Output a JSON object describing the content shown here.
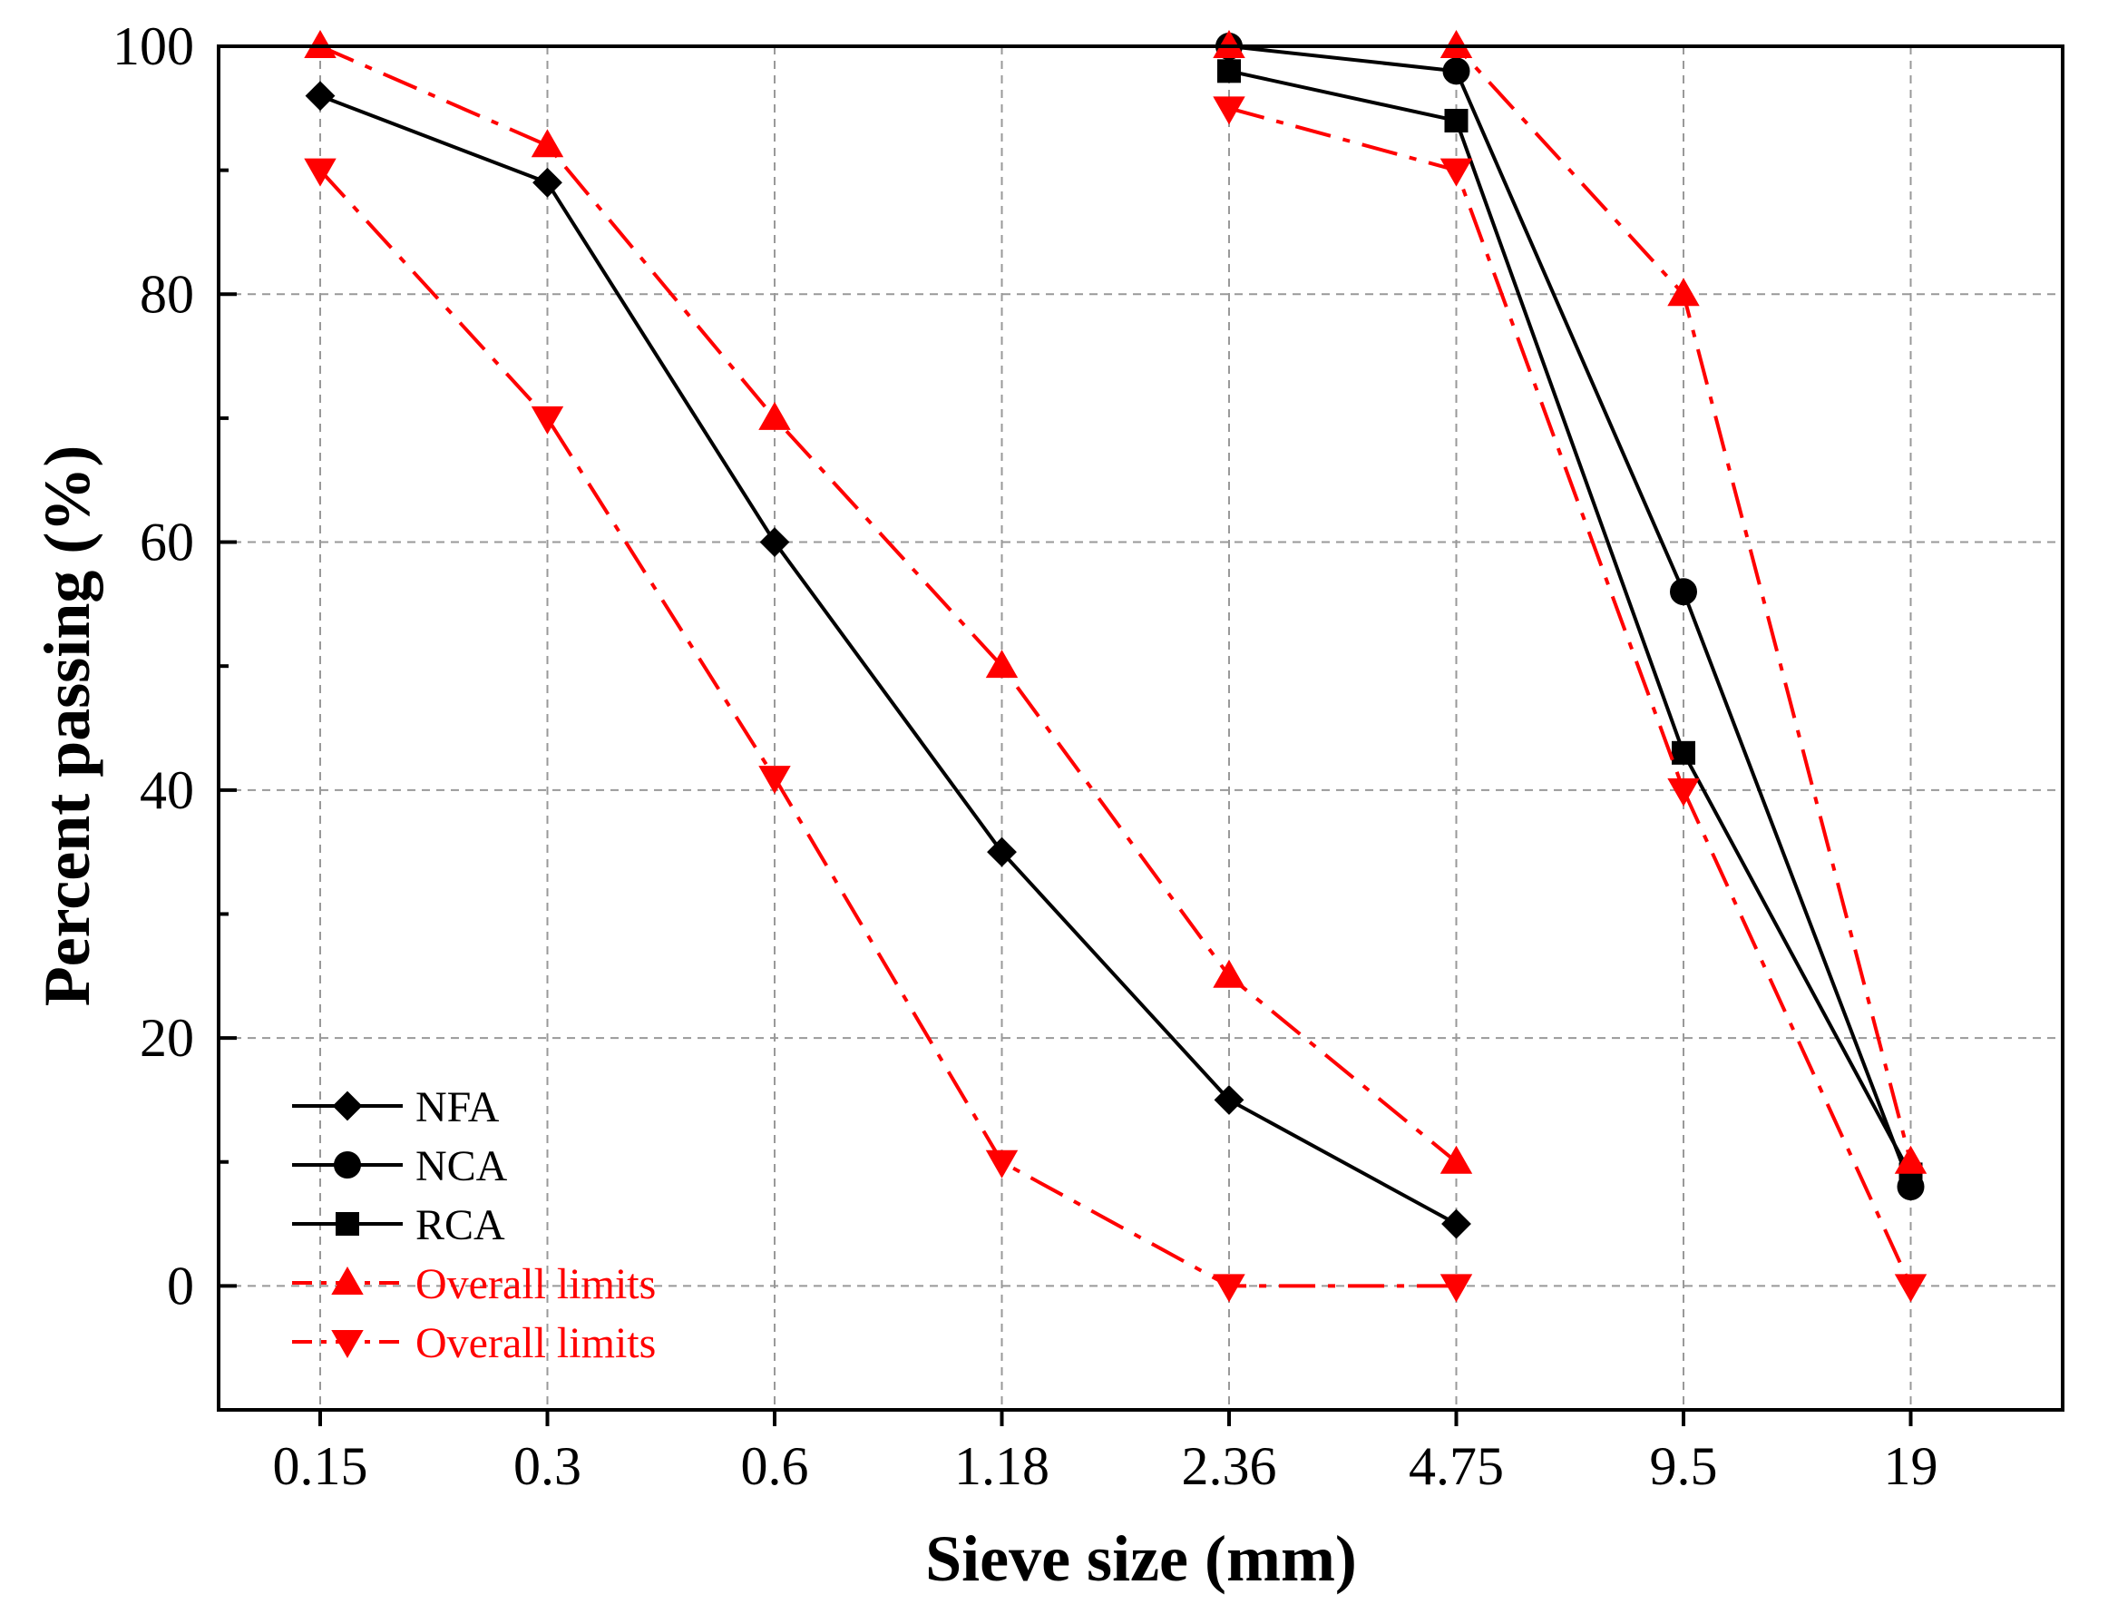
{
  "chart_data": {
    "type": "line",
    "title": "",
    "xlabel": "Sieve size (mm)",
    "ylabel": "Percent passing (%)",
    "categories": [
      "0.15",
      "0.3",
      "0.6",
      "1.18",
      "2.36",
      "4.75",
      "9.5",
      "19"
    ],
    "ylim": [
      -10,
      100
    ],
    "yticks": [
      0,
      20,
      40,
      60,
      80,
      100
    ],
    "grid": true,
    "legend_position": "bottom-left",
    "series": [
      {
        "name": "NFA",
        "color": "#000000",
        "marker": "diamond",
        "dash": "solid",
        "values": [
          96,
          89,
          60,
          35,
          15,
          5,
          null,
          null
        ]
      },
      {
        "name": "NCA",
        "color": "#000000",
        "marker": "circle",
        "dash": "solid",
        "values": [
          null,
          null,
          null,
          null,
          100,
          98,
          56,
          8
        ]
      },
      {
        "name": "RCA",
        "color": "#000000",
        "marker": "square",
        "dash": "solid",
        "values": [
          null,
          null,
          null,
          null,
          98,
          94,
          43,
          9
        ]
      },
      {
        "name": "Overall limits",
        "color": "#ff0000",
        "marker": "triangle-up",
        "dash": "dashdot",
        "values": [
          100,
          92,
          70,
          50,
          25,
          10,
          null,
          null
        ]
      },
      {
        "name": "Overall limits",
        "color": "#ff0000",
        "marker": "triangle-down",
        "dash": "dashdot",
        "values": [
          90,
          70,
          41,
          10,
          0,
          0,
          null,
          null
        ]
      },
      {
        "name": "Overall limits",
        "color": "#ff0000",
        "marker": "triangle-up",
        "dash": "dashdot",
        "in_legend": false,
        "values": [
          null,
          null,
          null,
          null,
          100,
          100,
          80,
          10
        ]
      },
      {
        "name": "Overall limits",
        "color": "#ff0000",
        "marker": "triangle-down",
        "dash": "dashdot",
        "in_legend": false,
        "values": [
          null,
          null,
          null,
          null,
          95,
          90,
          40,
          0
        ]
      }
    ]
  }
}
